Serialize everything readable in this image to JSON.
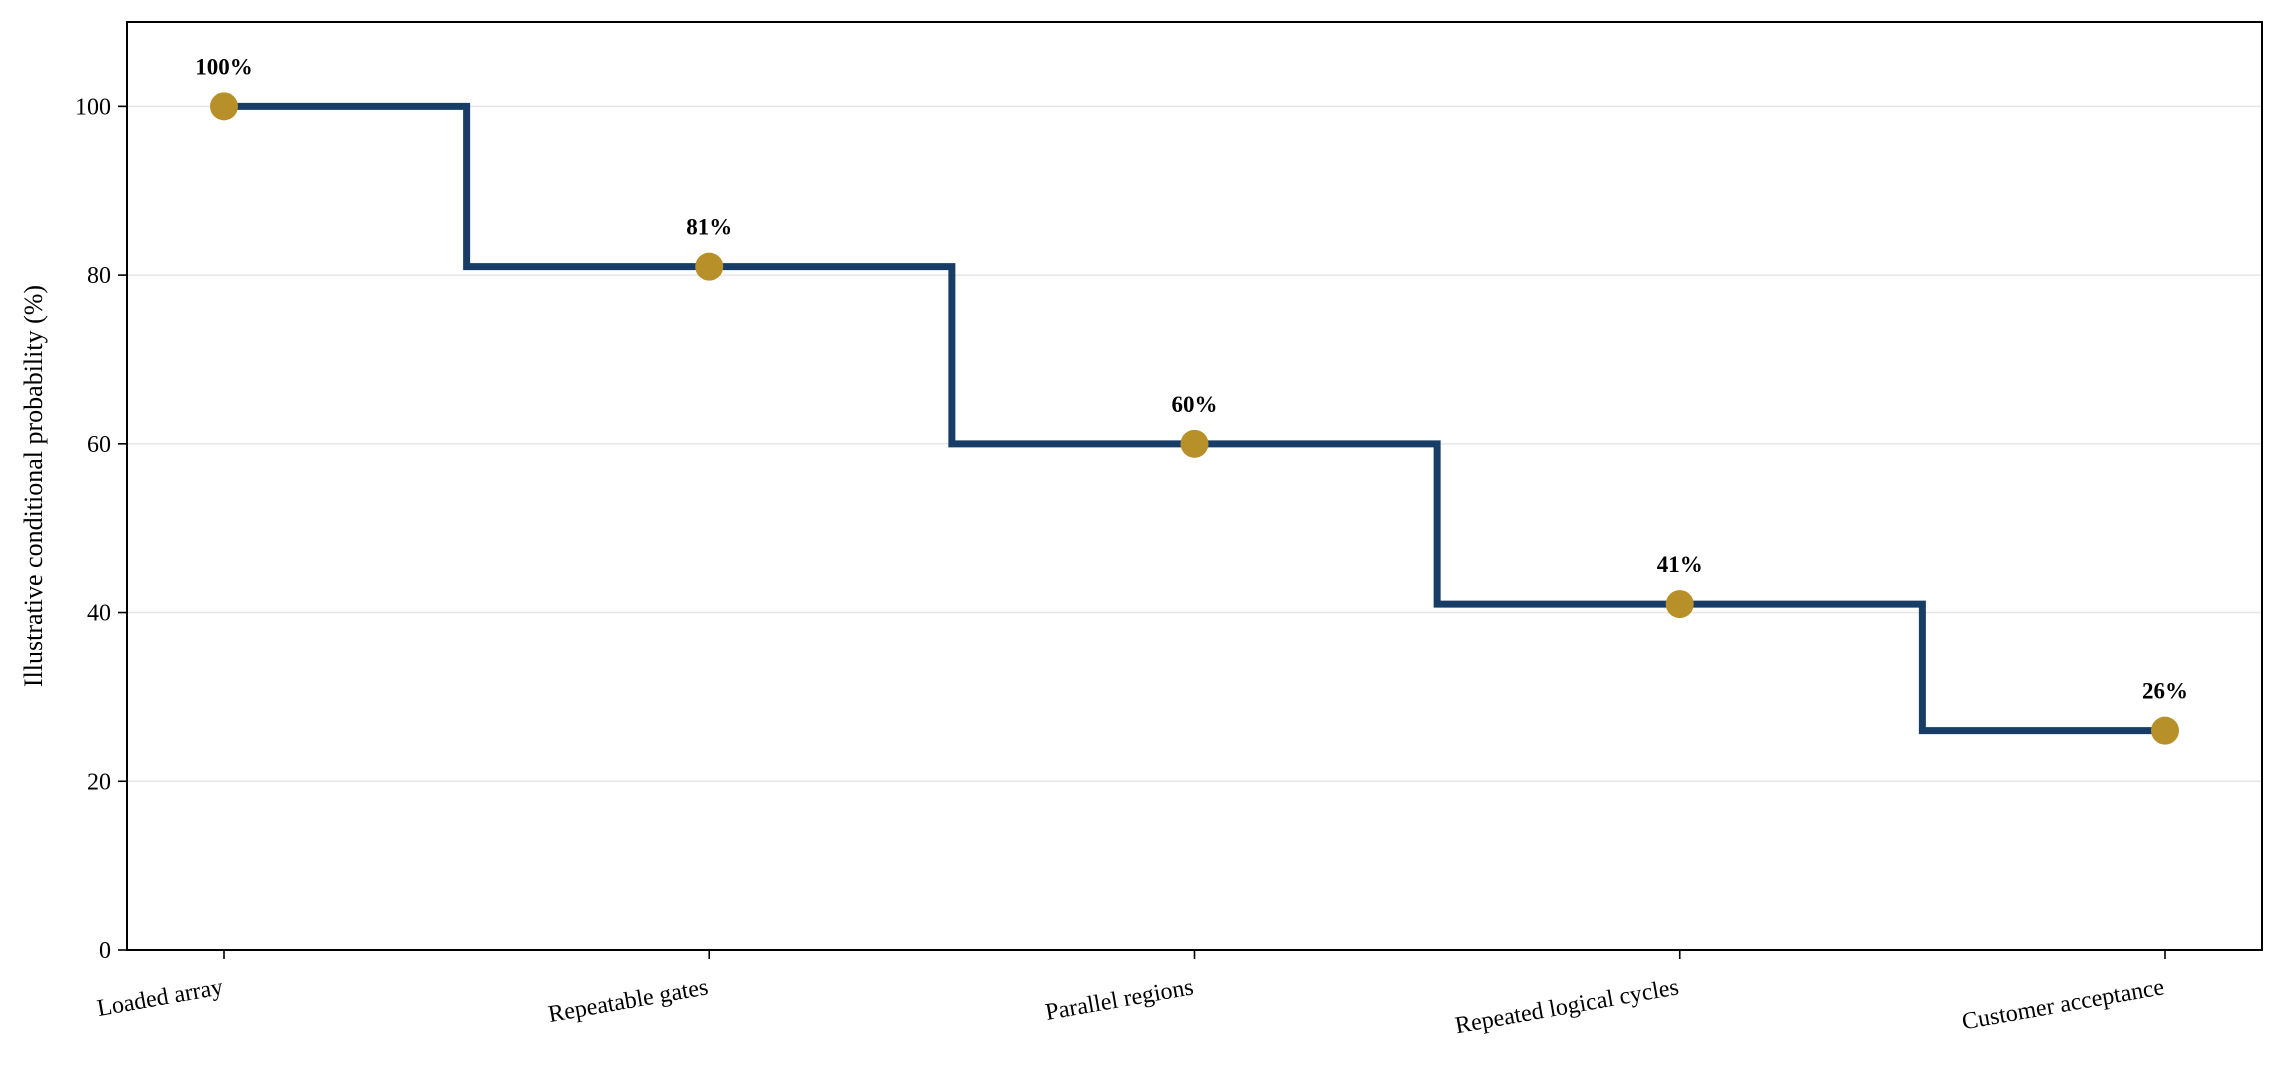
{
  "chart_data": {
    "type": "line",
    "step": "mid",
    "categories": [
      "Loaded array",
      "Repeatable gates",
      "Parallel regions",
      "Repeated logical cycles",
      "Customer acceptance"
    ],
    "series": [
      {
        "values": [
          100,
          81,
          60,
          41,
          26
        ],
        "labels": [
          "100%",
          "81%",
          "60%",
          "41%",
          "26%"
        ]
      }
    ],
    "title": "",
    "xlabel": "",
    "ylabel": "Illustrative conditional probability (%)",
    "ylim": [
      0,
      110
    ],
    "yticks": [
      0,
      20,
      40,
      60,
      80,
      100
    ],
    "ytick_labels": [
      "0",
      "20",
      "40",
      "60",
      "80",
      "100"
    ],
    "grid": "horizontal",
    "legend": "none",
    "colors": {
      "line": "#173c66",
      "marker": "#b8902a",
      "grid": "#e6e6e6",
      "axis": "#000000"
    }
  }
}
